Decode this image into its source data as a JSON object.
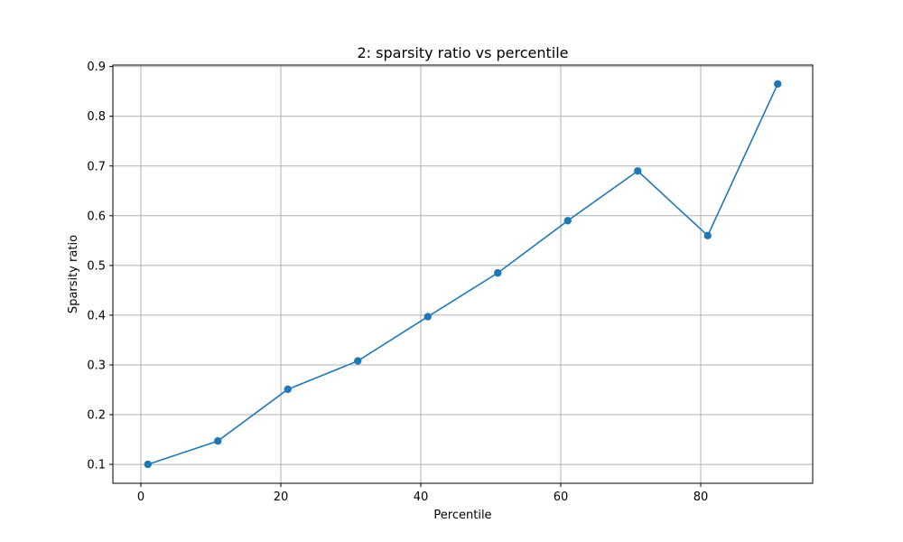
{
  "chart_data": {
    "type": "line",
    "title": "2: sparsity ratio vs percentile",
    "xlabel": "Percentile",
    "ylabel": "Sparsity ratio",
    "x": [
      1,
      11,
      21,
      31,
      41,
      51,
      61,
      71,
      81,
      91
    ],
    "series": [
      {
        "values": [
          0.1,
          0.147,
          0.251,
          0.308,
          0.397,
          0.485,
          0.59,
          0.69,
          0.56,
          0.865
        ]
      }
    ],
    "xlim": [
      -4,
      96
    ],
    "ylim": [
      0.062,
      0.903
    ],
    "xticks": [
      0,
      20,
      40,
      60,
      80
    ],
    "xtick_labels": [
      "0",
      "20",
      "40",
      "60",
      "80"
    ],
    "yticks": [
      0.1,
      0.2,
      0.3,
      0.4,
      0.5,
      0.6,
      0.7,
      0.8,
      0.9
    ],
    "ytick_labels": [
      "0.1",
      "0.2",
      "0.3",
      "0.4",
      "0.5",
      "0.6",
      "0.7",
      "0.8",
      "0.9"
    ],
    "grid": true,
    "markers": true,
    "line_color": "#1f77b4",
    "grid_color": "#b0b0b0"
  }
}
